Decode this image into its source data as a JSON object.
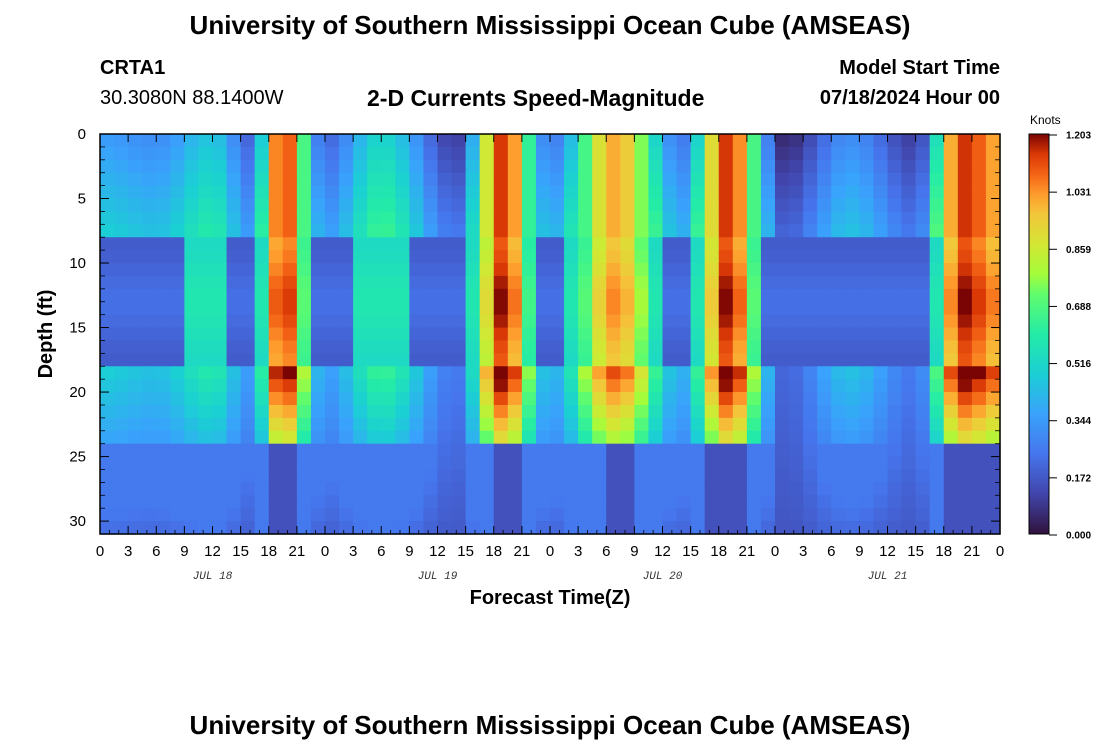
{
  "page": {
    "title_top": "University of Southern Mississippi Ocean Cube (AMSEAS)",
    "title_bottom": "University of Southern Mississippi Ocean Cube (AMSEAS)",
    "station": "CRTA1",
    "coords": "30.3080N  88.1400W",
    "product": "2-D Currents Speed-Magnitude",
    "model_start_label": "Model Start Time",
    "model_start_value": "07/18/2024 Hour 00"
  },
  "chart_data": {
    "type": "heatmap",
    "title": "2-D Currents Speed-Magnitude",
    "xlabel": "Forecast Time(Z)",
    "ylabel": "Depth (ft)",
    "x_unit": "forecast hour from 07/18/2024 00Z",
    "xlim": [
      0,
      96
    ],
    "ylim": [
      0,
      31
    ],
    "y_inverted": true,
    "x_tick_labels": [
      "0",
      "3",
      "6",
      "9",
      "12",
      "15",
      "18",
      "21",
      "0",
      "3",
      "6",
      "9",
      "12",
      "15",
      "18",
      "21",
      "0",
      "3",
      "6",
      "9",
      "12",
      "15",
      "18",
      "21",
      "0",
      "3",
      "6",
      "9",
      "12",
      "15",
      "18",
      "21",
      "0"
    ],
    "y_tick_labels": [
      "0",
      "5",
      "10",
      "15",
      "20",
      "25",
      "30"
    ],
    "y_tick_values": [
      0,
      5,
      10,
      15,
      20,
      25,
      30
    ],
    "date_labels": [
      {
        "text": "JUL 18",
        "hour": 12
      },
      {
        "text": "JUL 19",
        "hour": 36
      },
      {
        "text": "JUL 20",
        "hour": 60
      },
      {
        "text": "JUL 21",
        "hour": 84
      }
    ],
    "colorbar": {
      "unit": "Knots",
      "ticks": [
        "1.203",
        "1.031",
        "0.859",
        "0.688",
        "0.516",
        "0.344",
        "0.172",
        "0.000"
      ],
      "min": 0.0,
      "max": 1.203,
      "colormap": "jet"
    },
    "depth_levels_ft": [
      0,
      1,
      2,
      3,
      4,
      5,
      6,
      7,
      8,
      9,
      10,
      11,
      12,
      13,
      14,
      15,
      16,
      17,
      18,
      19,
      20,
      21,
      22,
      23,
      24,
      25,
      26,
      27,
      28,
      29,
      30,
      31
    ],
    "surface_speed_knots": [
      {
        "hour": 0,
        "speed": 0.34
      },
      {
        "hour": 6,
        "speed": 0.3
      },
      {
        "hour": 12,
        "speed": 0.45
      },
      {
        "hour": 16,
        "speed": 0.2
      },
      {
        "hour": 19.5,
        "speed": 1.15
      },
      {
        "hour": 24,
        "speed": 0.2
      },
      {
        "hour": 30,
        "speed": 0.5
      },
      {
        "hour": 38,
        "speed": 0.1
      },
      {
        "hour": 43,
        "speed": 1.15
      },
      {
        "hour": 48,
        "speed": 0.25
      },
      {
        "hour": 55,
        "speed": 1.0
      },
      {
        "hour": 62,
        "speed": 0.25
      },
      {
        "hour": 67,
        "speed": 1.15
      },
      {
        "hour": 73,
        "speed": 0.05
      },
      {
        "hour": 80,
        "speed": 0.3
      },
      {
        "hour": 87,
        "speed": 0.1
      },
      {
        "hour": 92,
        "speed": 1.15
      },
      {
        "hour": 96,
        "speed": 1.0
      }
    ]
  }
}
